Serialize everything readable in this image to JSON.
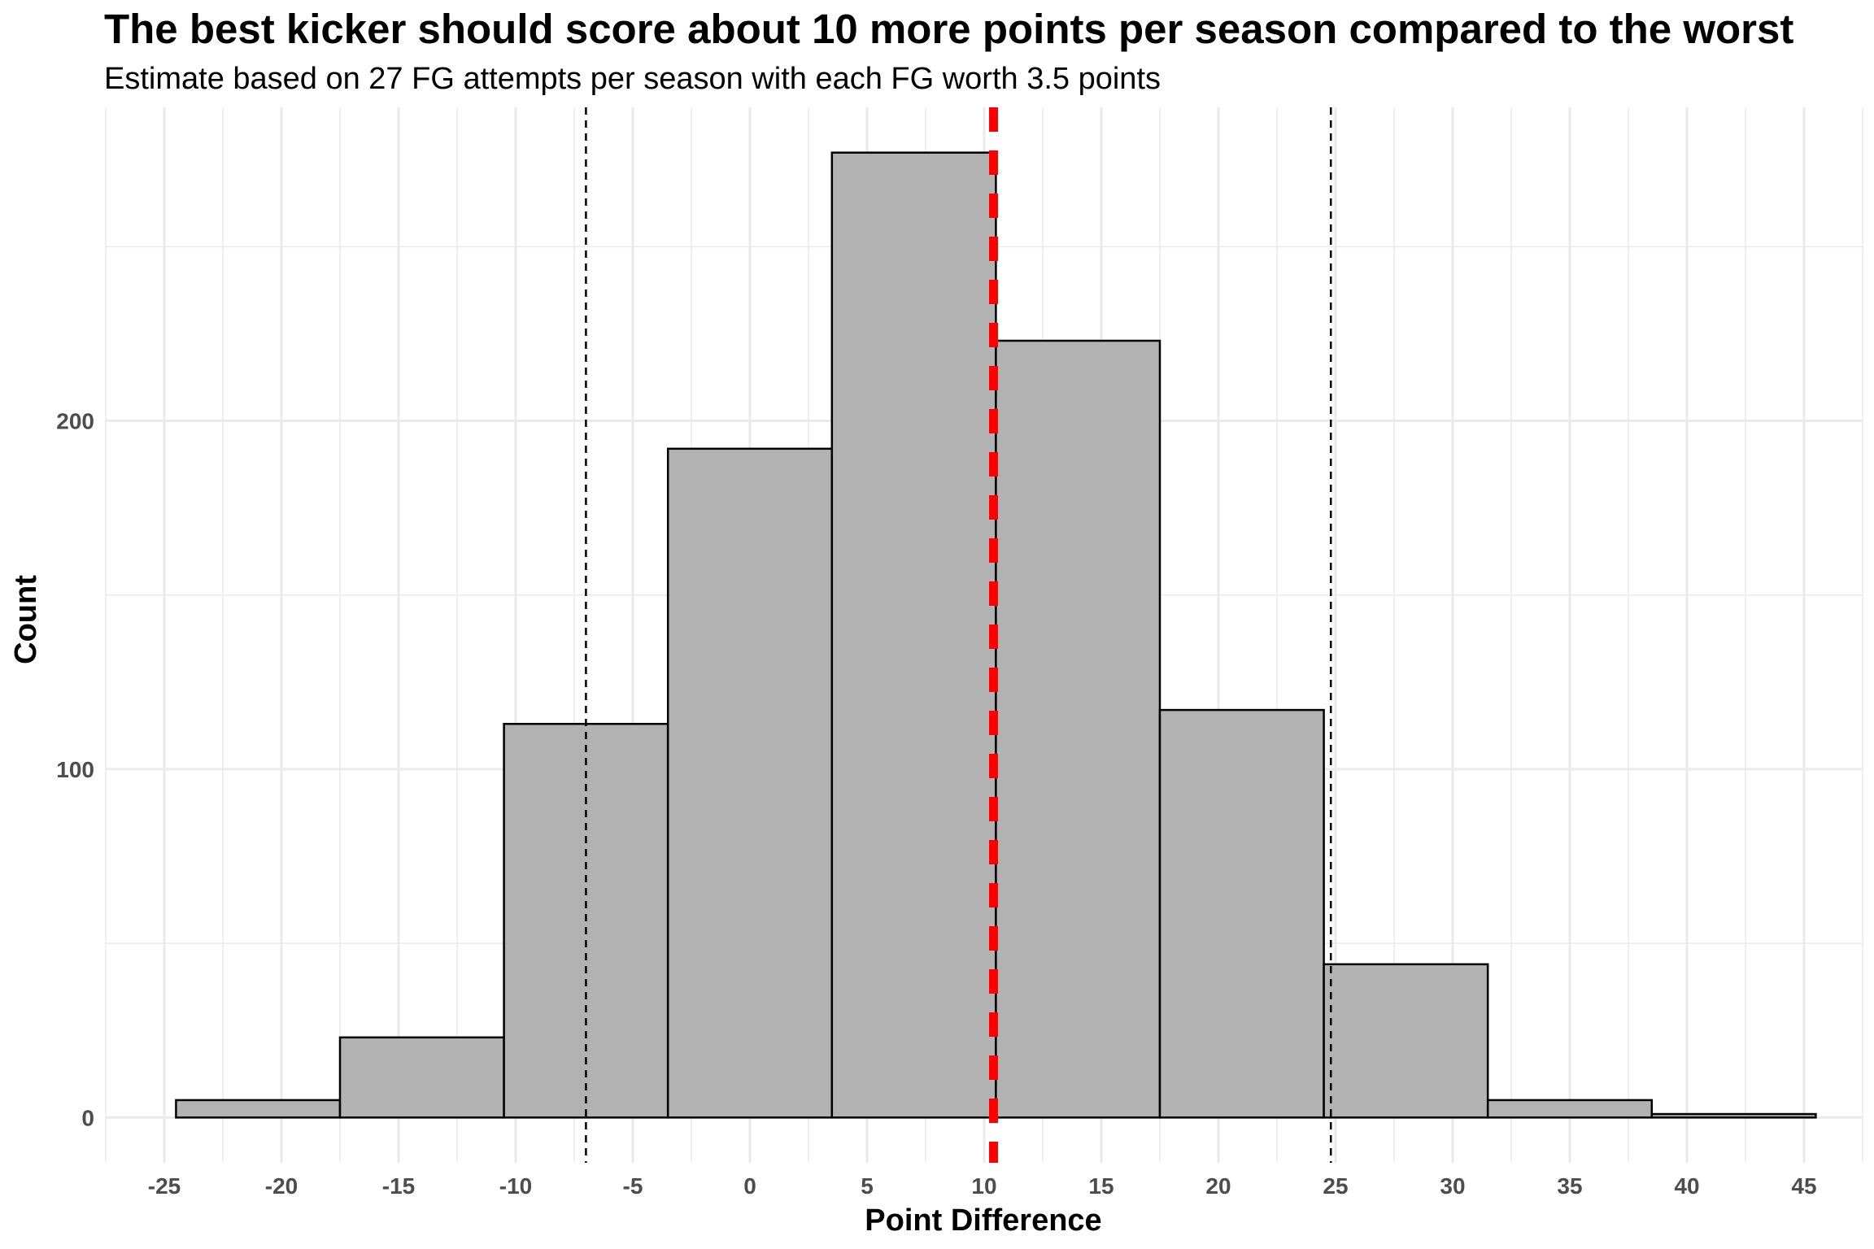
{
  "chart_data": {
    "type": "bar",
    "title": "The best kicker should score about 10 more points per season compared to the worst",
    "subtitle": "Estimate based on 27 FG attempts per season with each FG worth 3.5 points",
    "xlabel": "Point Difference",
    "ylabel": "Count",
    "xlim": [
      -27.5,
      47.5
    ],
    "ylim": [
      -13,
      290
    ],
    "x_ticks": [
      -25,
      -20,
      -15,
      -10,
      -5,
      0,
      5,
      10,
      15,
      20,
      25,
      30,
      35,
      40,
      45
    ],
    "y_ticks": [
      0,
      100,
      200
    ],
    "y_minor_ticks": [
      50,
      150,
      250
    ],
    "grid": true,
    "legend": "none",
    "bin_width": 7,
    "bins": [
      {
        "start": -24.5,
        "end": -17.5,
        "count": 5
      },
      {
        "start": -17.5,
        "end": -10.5,
        "count": 23
      },
      {
        "start": -10.5,
        "end": -3.5,
        "count": 113
      },
      {
        "start": -3.5,
        "end": 3.5,
        "count": 192
      },
      {
        "start": 3.5,
        "end": 10.5,
        "count": 277
      },
      {
        "start": 10.5,
        "end": 17.5,
        "count": 223
      },
      {
        "start": 17.5,
        "end": 24.5,
        "count": 117
      },
      {
        "start": 24.5,
        "end": 31.5,
        "count": 44
      },
      {
        "start": 31.5,
        "end": 38.5,
        "count": 5
      },
      {
        "start": 38.5,
        "end": 45.5,
        "count": 1
      }
    ],
    "reference_lines": [
      {
        "x": -7.0,
        "style": "dashed",
        "color": "#000000",
        "role": "lower"
      },
      {
        "x": 10.4,
        "style": "dashed",
        "color": "#ff0000",
        "role": "center"
      },
      {
        "x": 24.8,
        "style": "dashed",
        "color": "#000000",
        "role": "upper"
      }
    ],
    "colors": {
      "bar_fill": "#b2b2b2",
      "bar_stroke": "#000000",
      "grid": "#ebebeb",
      "tick_label": "#4d4d4d"
    }
  }
}
